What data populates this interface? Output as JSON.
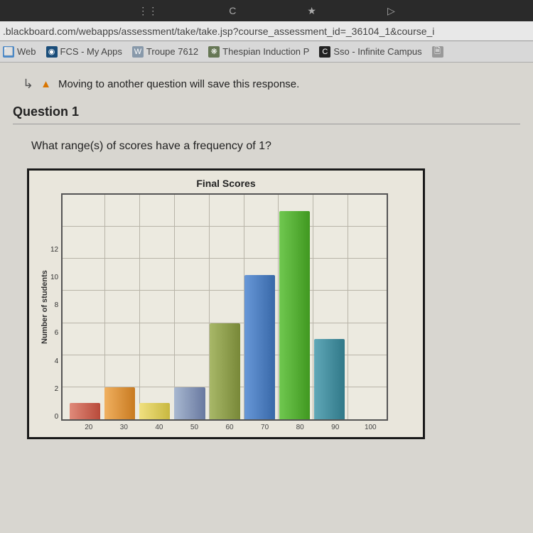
{
  "browser": {
    "top_icons": [
      "⋮⋮",
      "C",
      "★",
      "▷"
    ],
    "url": ".blackboard.com/webapps/assessment/take/take.jsp?course_assessment_id=_36104_1&course_i"
  },
  "bookmarks": [
    {
      "icon": "⬜",
      "icon_bg": "#4a88c7",
      "label": "Web"
    },
    {
      "icon": "◉",
      "icon_bg": "#1a4d7a",
      "label": "FCS - My Apps"
    },
    {
      "icon": "W",
      "icon_bg": "#8899aa",
      "label": "Troupe 7612"
    },
    {
      "icon": "❋",
      "icon_bg": "#667755",
      "label": "Thespian Induction P"
    },
    {
      "icon": "C",
      "icon_bg": "#222222",
      "label": "Sso - Infinite Campus"
    },
    {
      "icon": "🗎",
      "icon_bg": "#999999",
      "label": ""
    }
  ],
  "notice": "Moving to another question will save this response.",
  "question": {
    "number": "Question 1",
    "text": "What range(s) of scores have a frequency of 1?"
  },
  "chart": {
    "title": "Final Scores",
    "ylabel": "Number of students",
    "ymax": 14,
    "yticks": [
      "12",
      "10",
      "8",
      "6",
      "4",
      "2",
      "0"
    ],
    "grid_color": "#b8b4a8",
    "background": "#eceae0",
    "bars": [
      {
        "x": "20",
        "v": 1,
        "c1": "#e08a7a",
        "c2": "#b84a3a"
      },
      {
        "x": "30",
        "v": 2,
        "c1": "#f0b060",
        "c2": "#c87a20"
      },
      {
        "x": "40",
        "v": 1,
        "c1": "#f0e080",
        "c2": "#c8b840"
      },
      {
        "x": "50",
        "v": 2,
        "c1": "#a8b8d0",
        "c2": "#6878a0"
      },
      {
        "x": "60",
        "v": 6,
        "c1": "#a8b868",
        "c2": "#788838"
      },
      {
        "x": "70",
        "v": 9,
        "c1": "#6898d8",
        "c2": "#3868a8"
      },
      {
        "x": "80",
        "v": 13,
        "c1": "#70c850",
        "c2": "#409820"
      },
      {
        "x": "90",
        "v": 5,
        "c1": "#60a8b8",
        "c2": "#307888"
      },
      {
        "x": "100",
        "v": 0,
        "c1": "#ffffff",
        "c2": "#ffffff"
      }
    ]
  }
}
